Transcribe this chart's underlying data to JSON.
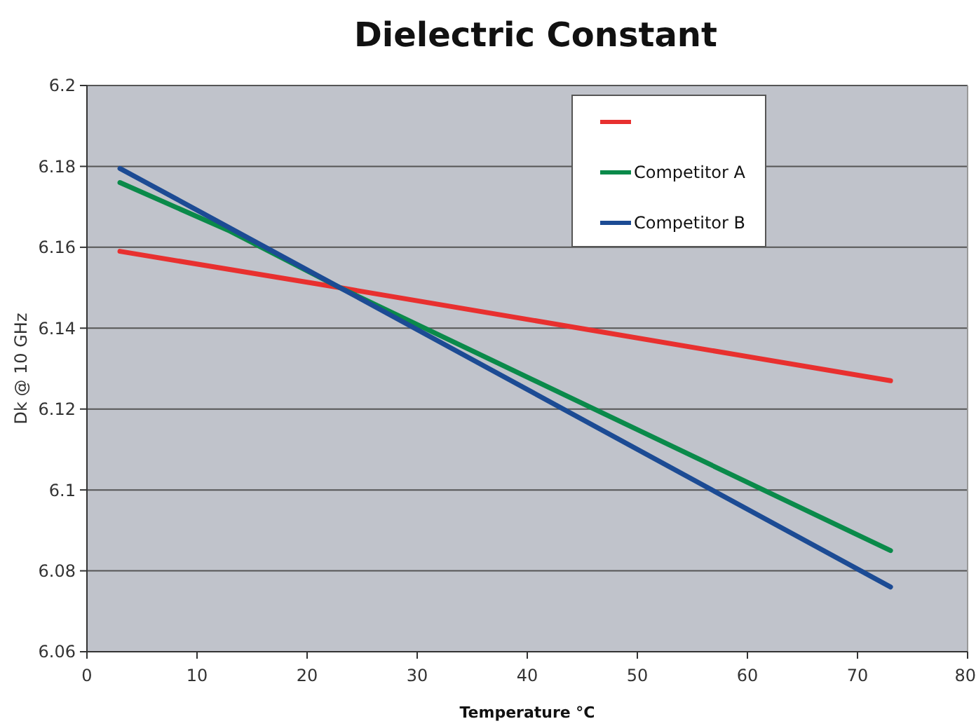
{
  "chart_data": {
    "type": "line",
    "title": "Dielectric Constant",
    "xlabel": "Temperature °C",
    "ylabel": "Dk @ 10 GHz",
    "xlim": [
      0,
      80
    ],
    "xticks": [
      0,
      10,
      20,
      30,
      40,
      50,
      60,
      70,
      80
    ],
    "ylim": [
      6.06,
      6.2
    ],
    "yticks": [
      6.06,
      6.08,
      6.1,
      6.12,
      6.14,
      6.16,
      6.18,
      6.2
    ],
    "grid": "y",
    "legend": "top right",
    "marker": "none",
    "line_style": "solid",
    "series": [
      {
        "color": "#e8302f",
        "x": [
          3,
          23,
          73
        ],
        "values": [
          6.159,
          6.15,
          6.127
        ]
      },
      {
        "name": "Competitor A",
        "color": "#0a8a4a",
        "x": [
          3,
          13,
          23,
          73
        ],
        "values": [
          6.176,
          6.164,
          6.15,
          6.085
        ]
      },
      {
        "name": "Competitor B",
        "color": "#1c4b94",
        "x": [
          3,
          23,
          73
        ],
        "values": [
          6.1795,
          6.15,
          6.076
        ]
      }
    ]
  }
}
